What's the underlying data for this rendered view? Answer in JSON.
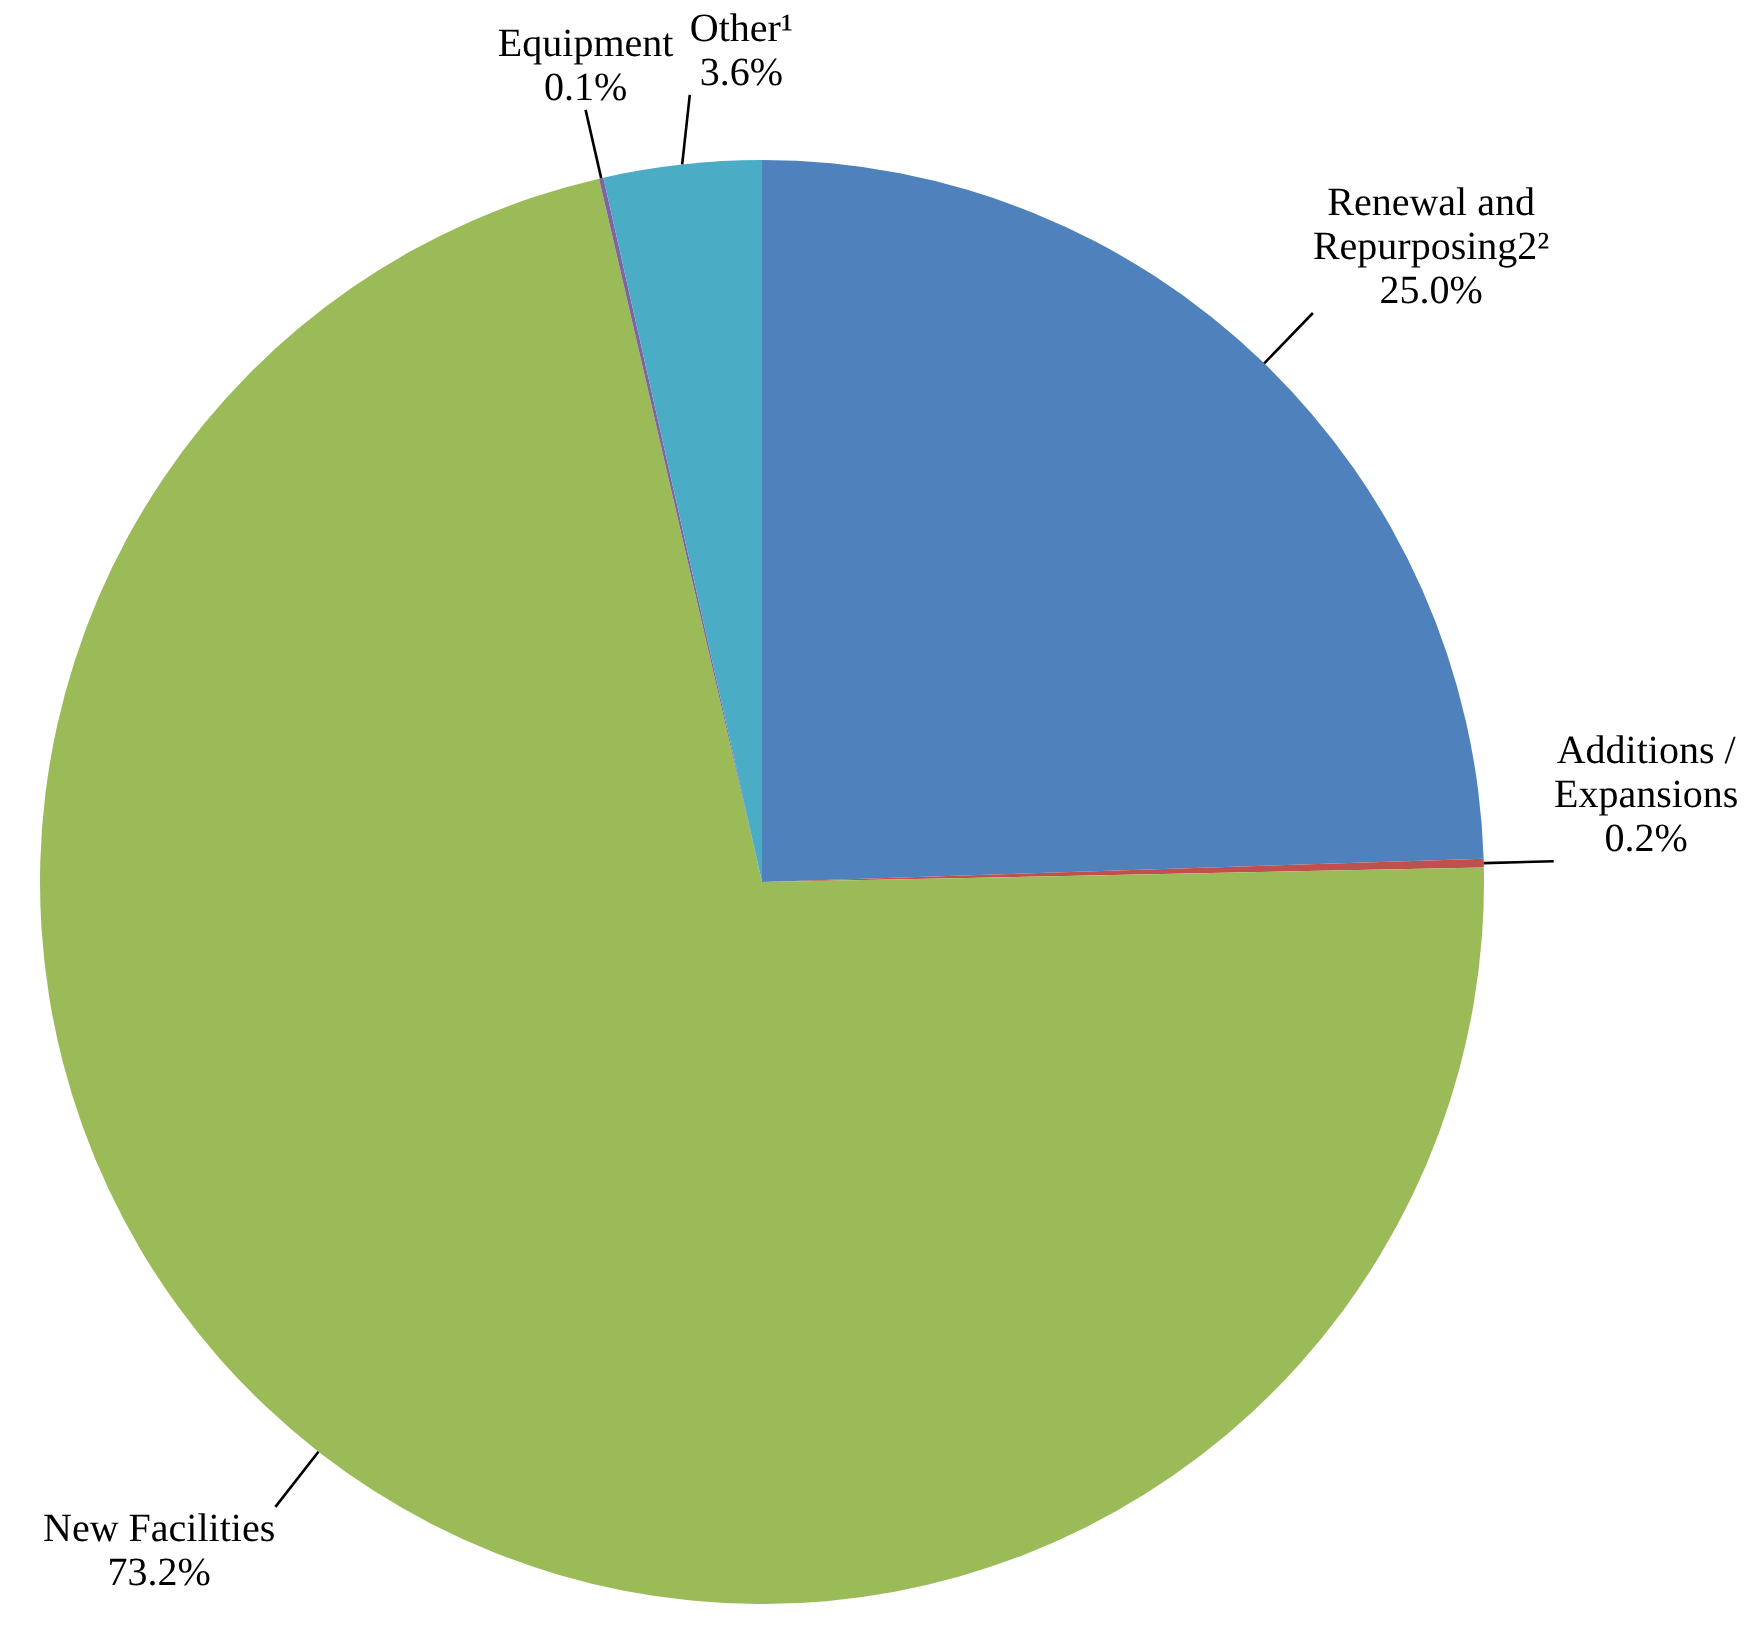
{
  "chart_data": {
    "type": "pie",
    "categories": [
      "Renewal and Repurposing2²",
      "Additions / Expansions",
      "New Facilities",
      "Equipment",
      "Other¹"
    ],
    "values": [
      25.0,
      0.2,
      73.2,
      0.1,
      3.6
    ],
    "colors": [
      "#4f81bd",
      "#c0504d",
      "#9bbb59",
      "#8064a2",
      "#4bacc6"
    ],
    "value_labels": [
      "25.0%",
      "0.2%",
      "73.2%",
      "0.1%",
      "3.6%"
    ]
  }
}
